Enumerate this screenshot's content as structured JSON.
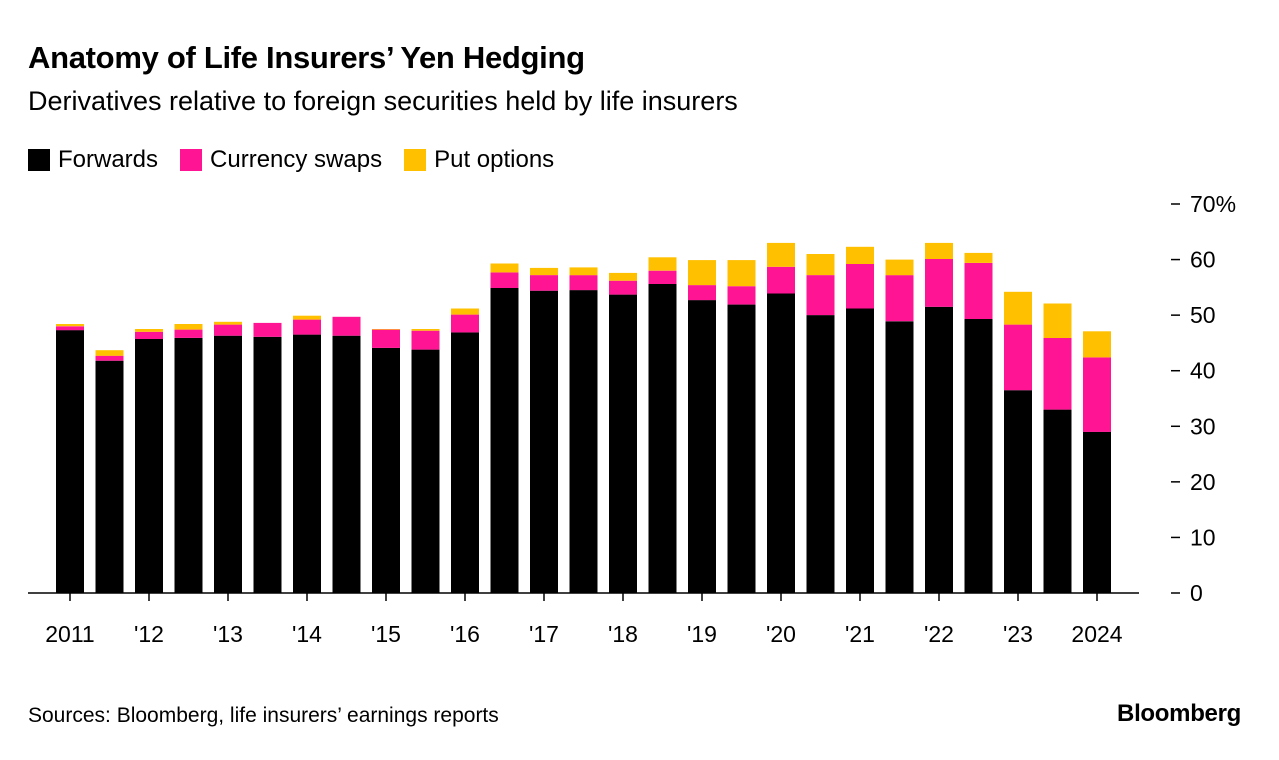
{
  "title": "Anatomy of Life Insurers’ Yen Hedging",
  "subtitle": "Derivatives relative to foreign securities held by life insurers",
  "legend": [
    {
      "label": "Forwards",
      "color": "#000000"
    },
    {
      "label": "Currency swaps",
      "color": "#ff1493"
    },
    {
      "label": "Put options",
      "color": "#ffc000"
    }
  ],
  "source": "Sources: Bloomberg, life insurers’ earnings reports",
  "logo": "Bloomberg",
  "chart_data": {
    "type": "bar",
    "stacked": true,
    "title": "Anatomy of Life Insurers’ Yen Hedging",
    "ylabel": "",
    "xlabel": "",
    "ylim": [
      0,
      70
    ],
    "y_ticks": [
      0,
      10,
      20,
      30,
      40,
      50,
      60,
      70
    ],
    "y_tick_labels": [
      "0",
      "10",
      "20",
      "30",
      "40",
      "50",
      "60",
      "70%"
    ],
    "x_tick_labels": [
      {
        "index": 0,
        "label": "2011"
      },
      {
        "index": 2,
        "label": "'12"
      },
      {
        "index": 4,
        "label": "'13"
      },
      {
        "index": 6,
        "label": "'14"
      },
      {
        "index": 8,
        "label": "'15"
      },
      {
        "index": 10,
        "label": "'16"
      },
      {
        "index": 12,
        "label": "'17"
      },
      {
        "index": 14,
        "label": "'18"
      },
      {
        "index": 16,
        "label": "'19"
      },
      {
        "index": 18,
        "label": "'20"
      },
      {
        "index": 20,
        "label": "'21"
      },
      {
        "index": 22,
        "label": "'22"
      },
      {
        "index": 24,
        "label": "'23"
      },
      {
        "index": 26,
        "label": "2024"
      }
    ],
    "series": [
      {
        "name": "Forwards",
        "color": "#000000",
        "values": [
          47.3,
          41.8,
          45.7,
          45.9,
          46.3,
          46.1,
          46.5,
          46.3,
          44.1,
          43.8,
          46.9,
          54.9,
          54.4,
          54.5,
          53.7,
          55.6,
          52.7,
          51.9,
          53.9,
          50.0,
          51.2,
          48.9,
          51.5,
          49.3,
          36.5,
          33.0,
          29.0
        ]
      },
      {
        "name": "Currency swaps",
        "color": "#ff1493",
        "values": [
          0.7,
          0.9,
          1.3,
          1.5,
          2.0,
          2.5,
          2.7,
          3.4,
          3.3,
          3.4,
          3.2,
          2.8,
          2.8,
          2.7,
          2.5,
          2.4,
          2.7,
          3.3,
          4.8,
          7.2,
          8.0,
          8.3,
          8.6,
          10.1,
          11.8,
          12.9,
          13.4
        ]
      },
      {
        "name": "Put options",
        "color": "#ffc000",
        "values": [
          0.4,
          1.0,
          0.5,
          1.0,
          0.5,
          0.0,
          0.7,
          0.0,
          0.1,
          0.3,
          1.1,
          1.6,
          1.3,
          1.4,
          1.4,
          2.4,
          4.5,
          4.7,
          4.3,
          3.8,
          3.1,
          2.8,
          2.9,
          1.8,
          5.9,
          6.2,
          4.7
        ]
      }
    ]
  }
}
